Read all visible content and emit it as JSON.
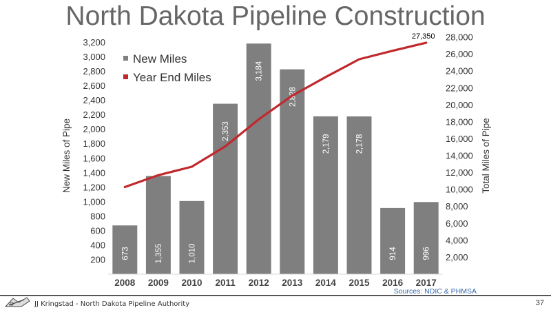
{
  "slide": {
    "title": "North Dakota Pipeline Construction",
    "source": "Sources: NDIC & PHMSA",
    "footer": "JJ Kringstad - North Dakota Pipeline Authority",
    "page_number": "37"
  },
  "chart_data": {
    "type": "bar",
    "title": "North Dakota Pipeline Construction",
    "categories": [
      "2008",
      "2009",
      "2010",
      "2011",
      "2012",
      "2013",
      "2014",
      "2015",
      "2016",
      "2017"
    ],
    "series": [
      {
        "name": "New Miles",
        "type": "bar",
        "axis": "left",
        "color": "#7f7f7f",
        "values": [
          673,
          1355,
          1010,
          2353,
          3184,
          2828,
          2179,
          2178,
          914,
          996
        ],
        "labels": [
          "673",
          "1,355",
          "1,010",
          "2,353",
          "3,184",
          "2,828",
          "2,179",
          "2,178",
          "914",
          "996"
        ]
      },
      {
        "name": "Year End Miles",
        "type": "line",
        "axis": "right",
        "color": "#c0282d",
        "values": [
          10300,
          11700,
          12700,
          15100,
          18300,
          21100,
          23300,
          25400,
          26400,
          27350
        ],
        "end_label": "27,350"
      }
    ],
    "ylabel": "New Miles of Pipe",
    "y2label": "Total Miles of Pipe",
    "ylim": [
      0,
      3300
    ],
    "y2lim": [
      0,
      28250
    ],
    "yticks": [
      200,
      400,
      600,
      800,
      1000,
      1200,
      1400,
      1600,
      1800,
      2000,
      2200,
      2400,
      2600,
      2800,
      3000,
      3200
    ],
    "ytick_labels": [
      "200",
      "400",
      "600",
      "800",
      "1,000",
      "1,200",
      "1,400",
      "1,600",
      "1,800",
      "2,000",
      "2,200",
      "2,400",
      "2,600",
      "2,800",
      "3,000",
      "3,200"
    ],
    "y2ticks": [
      2000,
      4000,
      6000,
      8000,
      10000,
      12000,
      14000,
      16000,
      18000,
      20000,
      22000,
      24000,
      26000,
      28000
    ],
    "y2tick_labels": [
      "2,000",
      "4,000",
      "6,000",
      "8,000",
      "10,000",
      "12,000",
      "14,000",
      "16,000",
      "18,000",
      "20,000",
      "22,000",
      "24,000",
      "26,000",
      "28,000"
    ],
    "grid": false,
    "legend": "top-left"
  }
}
